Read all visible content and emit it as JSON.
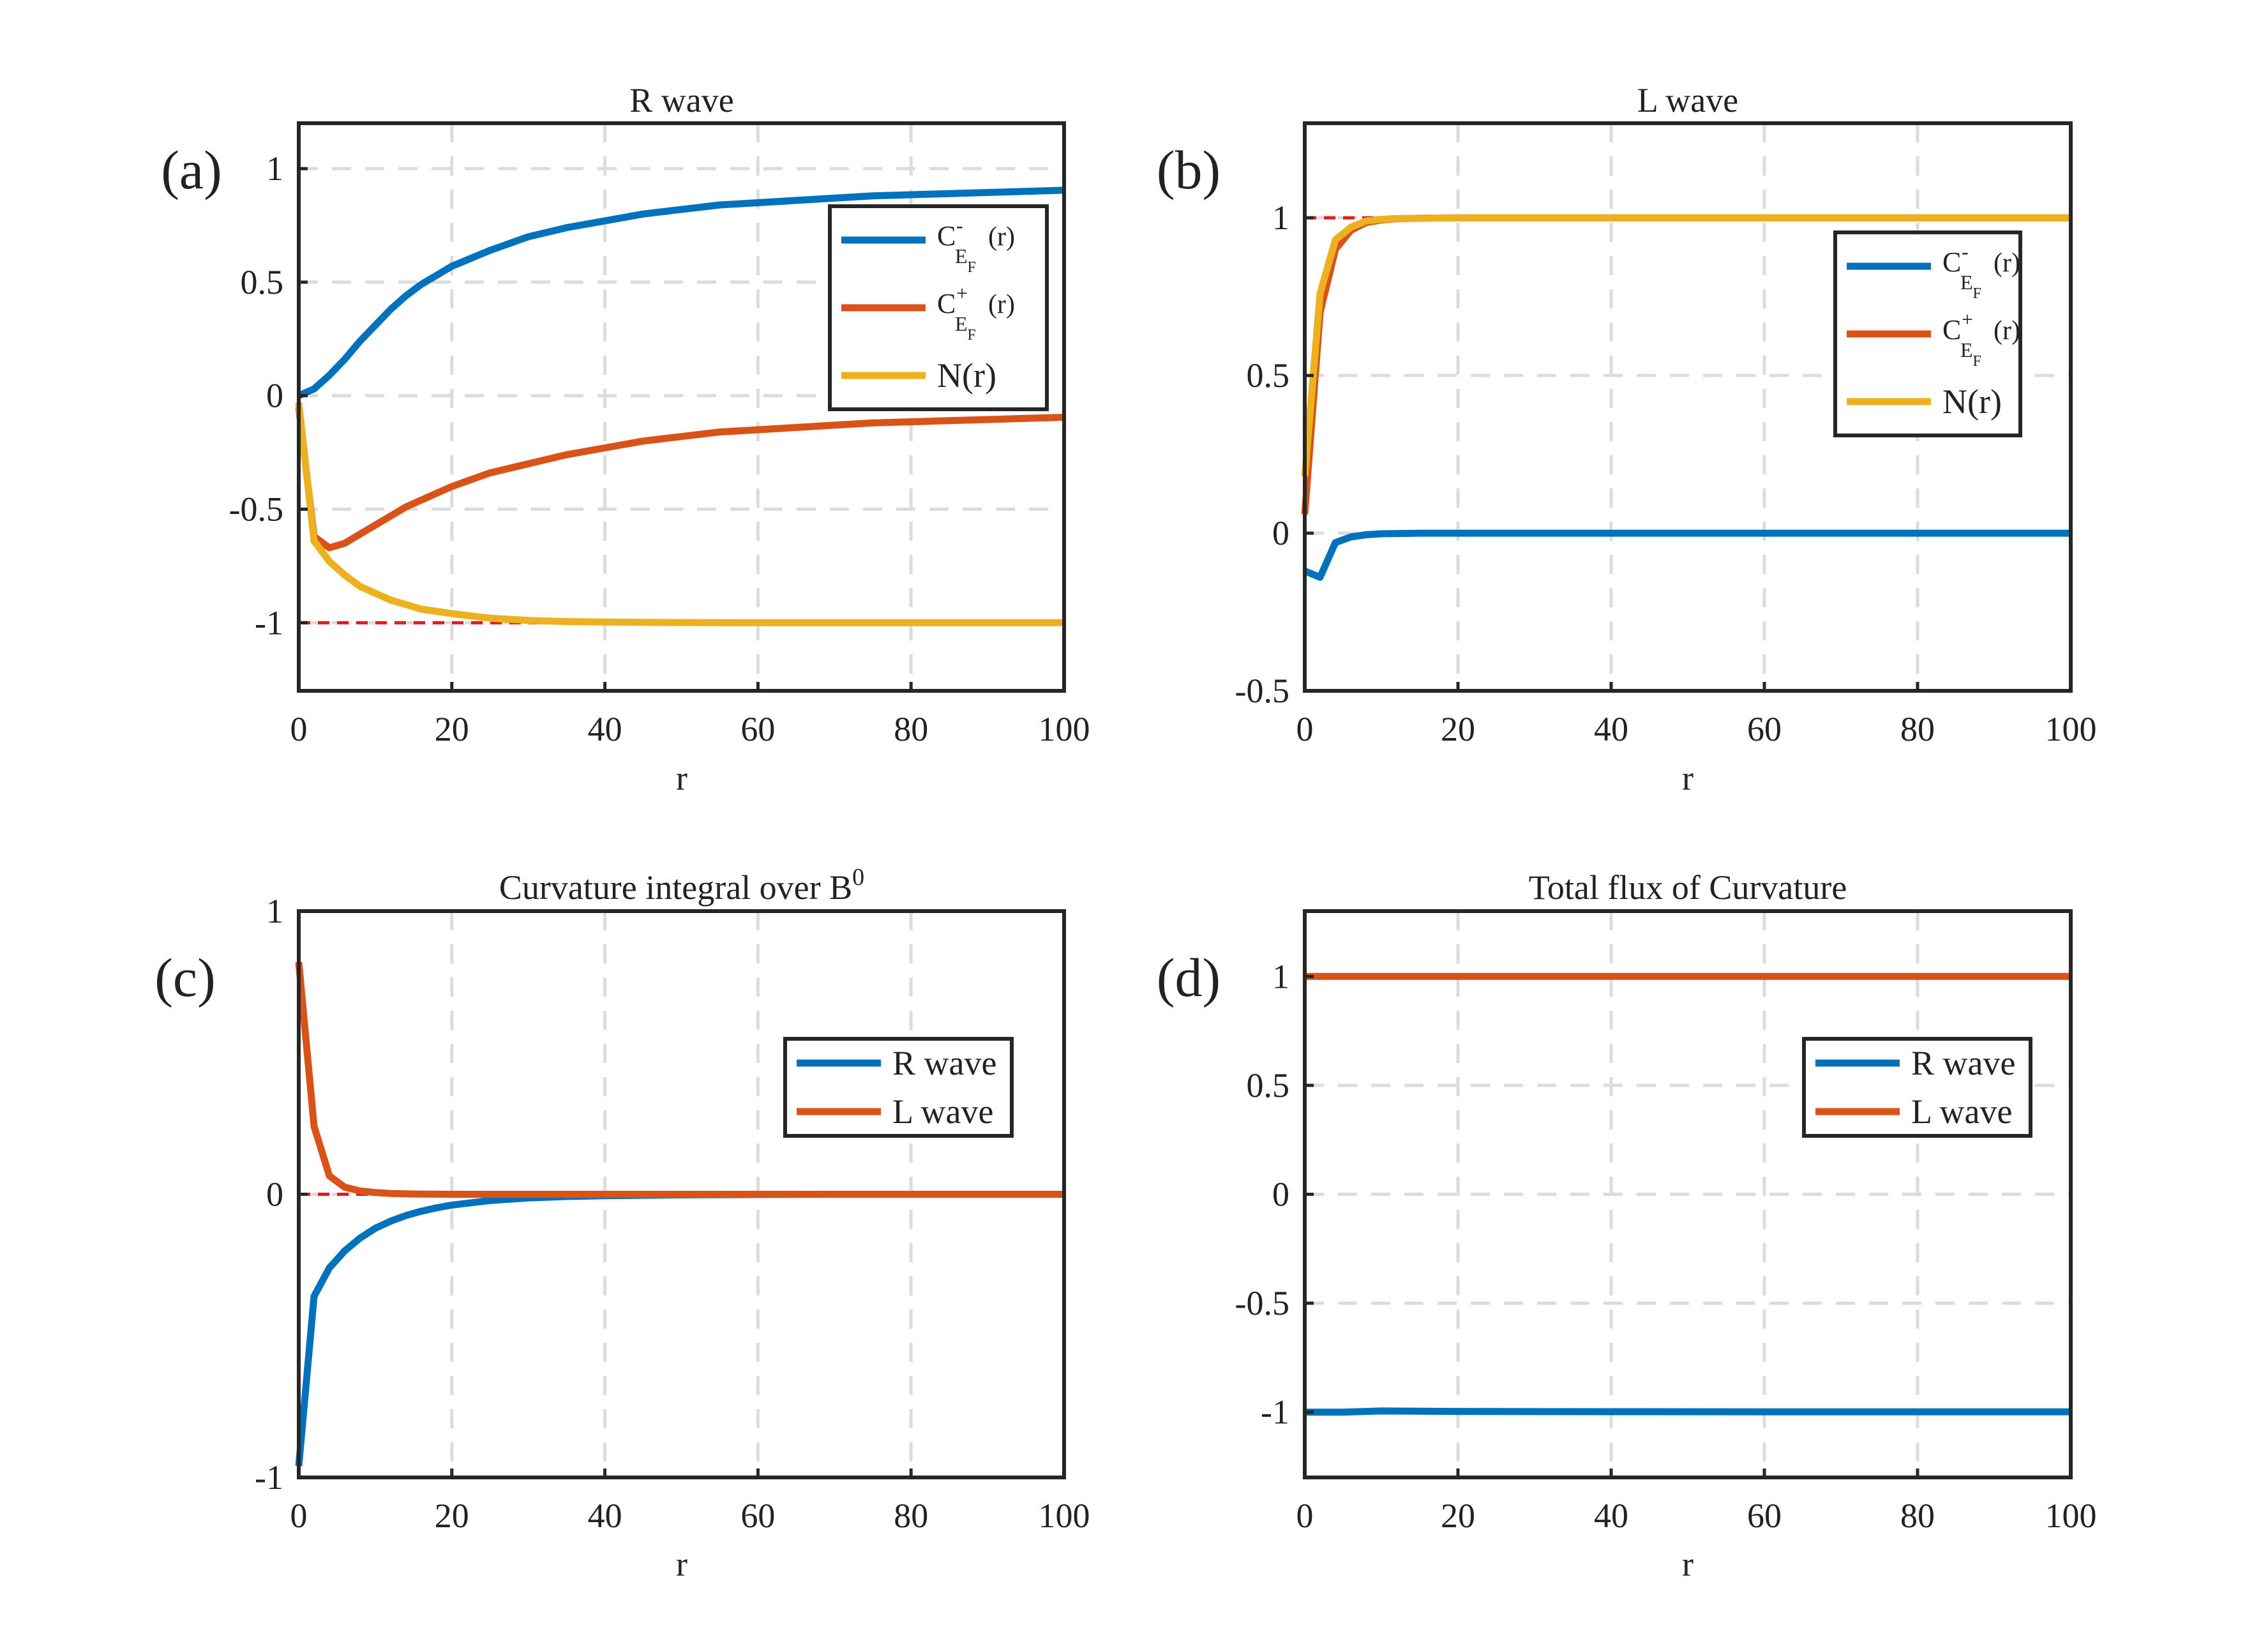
{
  "colors": {
    "blue": "#0072BD",
    "orange": "#D95319",
    "yellow": "#EDB120",
    "ref_line": "#E41A1C",
    "grid": "#DCDCDC",
    "axes": "#262626"
  },
  "chart_data": [
    {
      "panel": "(a)",
      "type": "line",
      "title": "R wave",
      "xlabel": "r",
      "ylabel": "",
      "xlim": [
        0,
        100
      ],
      "ylim": [
        -1.3,
        1.2
      ],
      "xticks": [
        0,
        20,
        40,
        60,
        80,
        100
      ],
      "xtick_labels": [
        "0",
        "20",
        "40",
        "60",
        "80",
        "100"
      ],
      "yticks": [
        -1,
        -0.5,
        0,
        0.5,
        1
      ],
      "ytick_labels": [
        "-1",
        "-0.5",
        "0",
        "0.5",
        "1"
      ],
      "grid": true,
      "legend_position": "upper-right",
      "reference_line": {
        "y": -1,
        "style": "dashed"
      },
      "series": [
        {
          "name": "C⁻E_F(r)",
          "legend_main": "C",
          "legend_sup": "-",
          "legend_sub": "E",
          "legend_subsub": "F",
          "legend_tail": "(r)",
          "color": "blue",
          "x": [
            0,
            2,
            4,
            6,
            8,
            10,
            12,
            14,
            16,
            18,
            20,
            25,
            30,
            35,
            40,
            45,
            50,
            55,
            60,
            65,
            70,
            75,
            80,
            85,
            90,
            95,
            100
          ],
          "y": [
            0.0,
            0.03,
            0.09,
            0.16,
            0.24,
            0.31,
            0.38,
            0.44,
            0.49,
            0.53,
            0.57,
            0.64,
            0.7,
            0.74,
            0.77,
            0.8,
            0.82,
            0.84,
            0.85,
            0.86,
            0.87,
            0.88,
            0.885,
            0.89,
            0.895,
            0.9,
            0.905
          ]
        },
        {
          "name": "C⁺E_F(r)",
          "legend_main": "C",
          "legend_sup": "+",
          "legend_sub": "E",
          "legend_subsub": "F",
          "legend_tail": "(r)",
          "color": "orange",
          "x": [
            0,
            2,
            4,
            6,
            8,
            10,
            12,
            14,
            16,
            18,
            20,
            25,
            30,
            35,
            40,
            45,
            50,
            55,
            60,
            65,
            70,
            75,
            80,
            85,
            90,
            95,
            100
          ],
          "y": [
            -0.05,
            -0.62,
            -0.67,
            -0.65,
            -0.61,
            -0.57,
            -0.53,
            -0.49,
            -0.46,
            -0.43,
            -0.4,
            -0.34,
            -0.3,
            -0.26,
            -0.23,
            -0.2,
            -0.18,
            -0.16,
            -0.15,
            -0.14,
            -0.13,
            -0.12,
            -0.115,
            -0.11,
            -0.105,
            -0.1,
            -0.095
          ]
        },
        {
          "name": "N(r)",
          "legend_main": "N(r)",
          "legend_sup": "",
          "legend_sub": "",
          "legend_subsub": "",
          "legend_tail": "",
          "color": "yellow",
          "x": [
            0,
            2,
            4,
            6,
            8,
            10,
            12,
            14,
            16,
            18,
            20,
            25,
            30,
            35,
            40,
            50,
            60,
            70,
            80,
            90,
            100
          ],
          "y": [
            -0.03,
            -0.64,
            -0.73,
            -0.79,
            -0.84,
            -0.87,
            -0.9,
            -0.92,
            -0.94,
            -0.95,
            -0.96,
            -0.98,
            -0.99,
            -0.995,
            -0.997,
            -0.999,
            -1.0,
            -1.0,
            -1.0,
            -1.0,
            -1.0
          ]
        }
      ]
    },
    {
      "panel": "(b)",
      "type": "line",
      "title": "L wave",
      "xlabel": "r",
      "ylabel": "",
      "xlim": [
        0,
        100
      ],
      "ylim": [
        -0.5,
        1.3
      ],
      "xticks": [
        0,
        20,
        40,
        60,
        80,
        100
      ],
      "xtick_labels": [
        "0",
        "20",
        "40",
        "60",
        "80",
        "100"
      ],
      "yticks": [
        -0.5,
        0,
        0.5,
        1
      ],
      "ytick_labels": [
        "-0.5",
        "0",
        "0.5",
        "1"
      ],
      "grid": true,
      "legend_position": "right",
      "reference_line": {
        "y": 1,
        "style": "dashed"
      },
      "series": [
        {
          "name": "C⁻E_F(r)",
          "legend_main": "C",
          "legend_sup": "-",
          "legend_sub": "E",
          "legend_subsub": "F",
          "legend_tail": "(r)",
          "color": "blue",
          "x": [
            0,
            2,
            4,
            6,
            8,
            10,
            15,
            20,
            40,
            60,
            80,
            100
          ],
          "y": [
            -0.12,
            -0.14,
            -0.03,
            -0.012,
            -0.005,
            -0.002,
            0.0,
            0.0,
            0.0,
            0.0,
            0.0,
            0.0
          ]
        },
        {
          "name": "C⁺E_F(r)",
          "legend_main": "C",
          "legend_sup": "+",
          "legend_sub": "E",
          "legend_subsub": "F",
          "legend_tail": "(r)",
          "color": "orange",
          "x": [
            0,
            2,
            4,
            6,
            8,
            10,
            12,
            15,
            20,
            40,
            60,
            80,
            100
          ],
          "y": [
            0.06,
            0.7,
            0.9,
            0.96,
            0.985,
            0.993,
            0.997,
            0.999,
            1.0,
            1.0,
            1.0,
            1.0,
            1.0
          ]
        },
        {
          "name": "N(r)",
          "legend_main": "N(r)",
          "legend_sup": "",
          "legend_sub": "",
          "legend_subsub": "",
          "legend_tail": "",
          "color": "yellow",
          "x": [
            0,
            2,
            4,
            6,
            8,
            10,
            12,
            15,
            20,
            40,
            60,
            80,
            100
          ],
          "y": [
            0.18,
            0.76,
            0.93,
            0.97,
            0.99,
            0.995,
            0.998,
            0.999,
            1.0,
            1.0,
            1.0,
            1.0,
            1.0
          ]
        }
      ]
    },
    {
      "panel": "(c)",
      "type": "line",
      "title": "Curvature integral over B",
      "title_sup": "0",
      "xlabel": "r",
      "ylabel": "",
      "xlim": [
        0,
        100
      ],
      "ylim": [
        -1,
        1
      ],
      "xticks": [
        0,
        20,
        40,
        60,
        80,
        100
      ],
      "xtick_labels": [
        "0",
        "20",
        "40",
        "60",
        "80",
        "100"
      ],
      "yticks": [
        -1,
        0,
        1
      ],
      "ytick_labels": [
        "-1",
        "0",
        "1"
      ],
      "grid": true,
      "legend_position": "right",
      "reference_line": {
        "y": 0,
        "style": "dashed"
      },
      "series": [
        {
          "name": "R wave",
          "legend_main": "R wave",
          "legend_sup": "",
          "legend_sub": "",
          "legend_subsub": "",
          "legend_tail": "",
          "color": "blue",
          "x": [
            0,
            2,
            4,
            6,
            8,
            10,
            12,
            14,
            16,
            18,
            20,
            25,
            30,
            35,
            40,
            50,
            60,
            70,
            80,
            90,
            100
          ],
          "y": [
            -0.96,
            -0.36,
            -0.26,
            -0.2,
            -0.155,
            -0.12,
            -0.095,
            -0.075,
            -0.06,
            -0.048,
            -0.038,
            -0.022,
            -0.013,
            -0.008,
            -0.005,
            -0.002,
            -0.001,
            0.0,
            0.0,
            0.0,
            0.0
          ]
        },
        {
          "name": "L wave",
          "legend_main": "L wave",
          "legend_sup": "",
          "legend_sub": "",
          "legend_subsub": "",
          "legend_tail": "",
          "color": "orange",
          "x": [
            0,
            2,
            4,
            6,
            8,
            10,
            12,
            15,
            20,
            40,
            60,
            80,
            100
          ],
          "y": [
            0.82,
            0.24,
            0.065,
            0.025,
            0.012,
            0.006,
            0.003,
            0.001,
            0.0,
            0.0,
            0.0,
            0.0,
            0.0
          ]
        }
      ]
    },
    {
      "panel": "(d)",
      "type": "line",
      "title": "Total flux of Curvature",
      "xlabel": "r",
      "ylabel": "",
      "xlim": [
        0,
        100
      ],
      "ylim": [
        -1.3,
        1.3
      ],
      "xticks": [
        0,
        20,
        40,
        60,
        80,
        100
      ],
      "xtick_labels": [
        "0",
        "20",
        "40",
        "60",
        "80",
        "100"
      ],
      "yticks": [
        -1,
        -0.5,
        0,
        0.5,
        1
      ],
      "ytick_labels": [
        "-1",
        "-0.5",
        "0",
        "0.5",
        "1"
      ],
      "grid": true,
      "legend_position": "right",
      "reference_line": null,
      "series": [
        {
          "name": "R wave",
          "legend_main": "R wave",
          "legend_sup": "",
          "legend_sub": "",
          "legend_subsub": "",
          "legend_tail": "",
          "color": "blue",
          "x": [
            0,
            5,
            10,
            20,
            40,
            60,
            80,
            100
          ],
          "y": [
            -1.0,
            -1.0,
            -0.995,
            -0.997,
            -0.998,
            -0.999,
            -0.999,
            -0.999
          ]
        },
        {
          "name": "L wave",
          "legend_main": "L wave",
          "legend_sup": "",
          "legend_sub": "",
          "legend_subsub": "",
          "legend_tail": "",
          "color": "orange",
          "x": [
            0,
            20,
            40,
            60,
            80,
            100
          ],
          "y": [
            1.0,
            1.0,
            1.0,
            1.0,
            1.0,
            1.0
          ]
        }
      ]
    }
  ]
}
